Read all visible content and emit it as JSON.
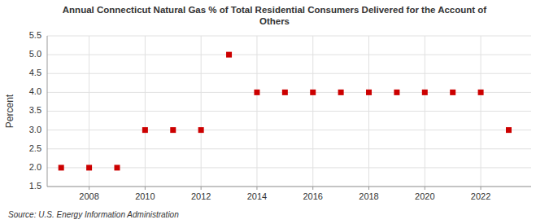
{
  "chart_data": {
    "type": "scatter",
    "title": "Annual Connecticut Natural Gas % of Total Residential Consumers Delivered for the Account of\nOthers",
    "y_label": "Percent",
    "annotations": [
      "Source: U.S. Energy Information Administration"
    ],
    "x": [
      2007,
      2008,
      2009,
      2010,
      2011,
      2012,
      2013,
      2014,
      2015,
      2016,
      2017,
      2018,
      2019,
      2020,
      2021,
      2022,
      2023
    ],
    "values": [
      2.0,
      2.0,
      2.0,
      3.0,
      3.0,
      3.0,
      5.0,
      4.0,
      4.0,
      4.0,
      4.0,
      4.0,
      4.0,
      4.0,
      4.0,
      4.0,
      3.0
    ],
    "color": "#CC0000",
    "marker": "square",
    "xlim": [
      2006.5,
      2023.8
    ],
    "xticks": [
      2008,
      2010,
      2012,
      2014,
      2016,
      2018,
      2020,
      2022
    ],
    "ylim": [
      1.5,
      5.5
    ],
    "yticks": [
      1.5,
      {
        "value": 2.0,
        "label": "2.0"
      },
      2.5,
      {
        "value": 3.0,
        "label": "3.0"
      },
      3.5,
      {
        "value": 4.0,
        "label": "4.0"
      },
      4.5,
      {
        "value": 5.0,
        "label": "5.0"
      },
      5.5
    ],
    "grid": true
  }
}
